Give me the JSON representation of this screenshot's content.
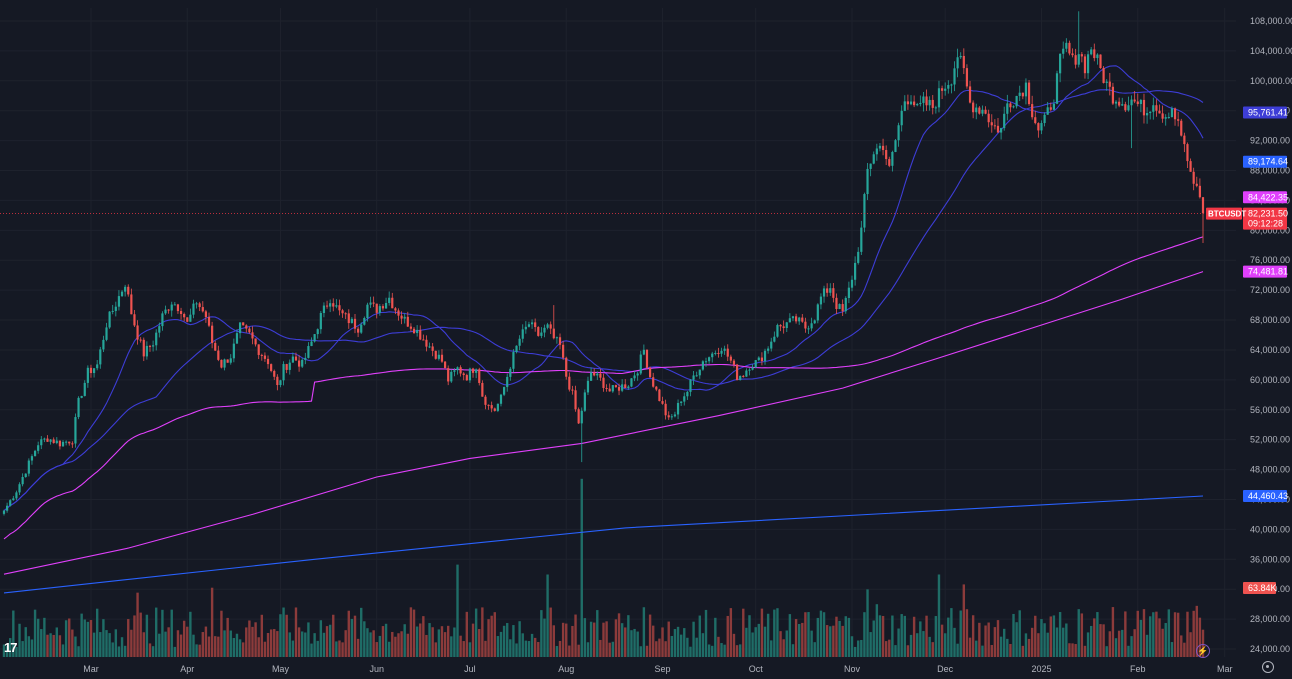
{
  "symbol": "BTCUSDT",
  "branding": {
    "logo_text": "17"
  },
  "colors": {
    "background": "#151924",
    "up": "#26a69a",
    "down": "#ef5350",
    "vol_up": "#1f6d67",
    "vol_down": "#8c3b3b",
    "ma_short": "#3d3dd6",
    "ma_mid": "#2962ff",
    "ma_pink": "#e040fb",
    "ma_pink2": "#d81b8a",
    "grid": "#1e222d",
    "axis_text": "#b2b5be",
    "price_line": "#f23645"
  },
  "chart_data": {
    "type": "candlestick",
    "ylim": [
      23000,
      110000
    ],
    "y_ticks": [
      "108,000.00",
      "104,000.00",
      "100,000.00",
      "96,000.00",
      "92,000.00",
      "88,000.00",
      "84,000.00",
      "80,000.00",
      "76,000.00",
      "72,000.00",
      "68,000.00",
      "64,000.00",
      "60,000.00",
      "56,000.00",
      "52,000.00",
      "48,000.00",
      "44,000.00",
      "40,000.00",
      "36,000.00",
      "32,000.00",
      "28,000.00",
      "24,000.00"
    ],
    "x_labels": [
      {
        "label": "Mar",
        "day": 28
      },
      {
        "label": "Apr",
        "day": 59
      },
      {
        "label": "May",
        "day": 89
      },
      {
        "label": "Jun",
        "day": 120
      },
      {
        "label": "Jul",
        "day": 150
      },
      {
        "label": "Aug",
        "day": 181
      },
      {
        "label": "Sep",
        "day": 212
      },
      {
        "label": "Oct",
        "day": 242
      },
      {
        "label": "Nov",
        "day": 273
      },
      {
        "label": "Dec",
        "day": 303
      },
      {
        "label": "2025",
        "day": 334
      },
      {
        "label": "Feb",
        "day": 365
      },
      {
        "label": "Mar",
        "day": 393
      }
    ],
    "close_anchors": [
      [
        0,
        42500
      ],
      [
        4,
        45200
      ],
      [
        8,
        48800
      ],
      [
        11,
        51500
      ],
      [
        14,
        52200
      ],
      [
        18,
        51500
      ],
      [
        22,
        52000
      ],
      [
        24,
        57000
      ],
      [
        27,
        61000
      ],
      [
        30,
        62000
      ],
      [
        33,
        67500
      ],
      [
        36,
        70200
      ],
      [
        39,
        73000
      ],
      [
        41,
        69000
      ],
      [
        43,
        66000
      ],
      [
        45,
        63500
      ],
      [
        48,
        65000
      ],
      [
        51,
        68500
      ],
      [
        54,
        70500
      ],
      [
        57,
        69500
      ],
      [
        59,
        67500
      ],
      [
        62,
        70500
      ],
      [
        65,
        68500
      ],
      [
        67,
        65000
      ],
      [
        70,
        62000
      ],
      [
        73,
        63200
      ],
      [
        76,
        67000
      ],
      [
        79,
        66000
      ],
      [
        82,
        64000
      ],
      [
        85,
        62500
      ],
      [
        88,
        59000
      ],
      [
        90,
        61500
      ],
      [
        93,
        63000
      ],
      [
        96,
        62000
      ],
      [
        99,
        65000
      ],
      [
        102,
        68500
      ],
      [
        105,
        71000
      ],
      [
        108,
        69000
      ],
      [
        111,
        68000
      ],
      [
        114,
        67000
      ],
      [
        117,
        70000
      ],
      [
        120,
        69500
      ],
      [
        124,
        71000
      ],
      [
        126,
        69500
      ],
      [
        129,
        68000
      ],
      [
        132,
        67000
      ],
      [
        135,
        65500
      ],
      [
        138,
        64000
      ],
      [
        141,
        62500
      ],
      [
        143,
        60000
      ],
      [
        146,
        61500
      ],
      [
        149,
        60500
      ],
      [
        152,
        62000
      ],
      [
        154,
        58000
      ],
      [
        156,
        56500
      ],
      [
        158,
        56000
      ],
      [
        160,
        57500
      ],
      [
        163,
        62000
      ],
      [
        166,
        65500
      ],
      [
        169,
        67500
      ],
      [
        172,
        66000
      ],
      [
        175,
        67000
      ],
      [
        177,
        65500
      ],
      [
        179,
        64500
      ],
      [
        181,
        60500
      ],
      [
        183,
        58000
      ],
      [
        185,
        54000
      ],
      [
        187,
        58000
      ],
      [
        189,
        61000
      ],
      [
        192,
        60000
      ],
      [
        195,
        58500
      ],
      [
        198,
        59000
      ],
      [
        201,
        59500
      ],
      [
        204,
        61500
      ],
      [
        206,
        64000
      ],
      [
        208,
        60500
      ],
      [
        210,
        58500
      ],
      [
        212,
        56500
      ],
      [
        214,
        54500
      ],
      [
        216,
        55500
      ],
      [
        218,
        57500
      ],
      [
        220,
        58500
      ],
      [
        222,
        60500
      ],
      [
        225,
        62500
      ],
      [
        228,
        63500
      ],
      [
        231,
        64500
      ],
      [
        234,
        62500
      ],
      [
        236,
        60500
      ],
      [
        238,
        60800
      ],
      [
        240,
        62000
      ],
      [
        243,
        62500
      ],
      [
        246,
        64500
      ],
      [
        249,
        67000
      ],
      [
        252,
        67500
      ],
      [
        255,
        68000
      ],
      [
        258,
        67000
      ],
      [
        261,
        68500
      ],
      [
        263,
        71000
      ],
      [
        266,
        72500
      ],
      [
        268,
        70000
      ],
      [
        270,
        69000
      ],
      [
        272,
        72000
      ],
      [
        274,
        75500
      ],
      [
        276,
        80000
      ],
      [
        278,
        88000
      ],
      [
        280,
        90500
      ],
      [
        283,
        91500
      ],
      [
        285,
        88000
      ],
      [
        288,
        94000
      ],
      [
        290,
        97500
      ],
      [
        292,
        98000
      ],
      [
        294,
        96000
      ],
      [
        296,
        97000
      ],
      [
        299,
        96500
      ],
      [
        302,
        99000
      ],
      [
        305,
        100500
      ],
      [
        307,
        103500
      ],
      [
        309,
        101000
      ],
      [
        311,
        97000
      ],
      [
        313,
        96500
      ],
      [
        316,
        96000
      ],
      [
        318,
        94000
      ],
      [
        321,
        93500
      ],
      [
        323,
        97000
      ],
      [
        326,
        98000
      ],
      [
        329,
        99500
      ],
      [
        331,
        96000
      ],
      [
        333,
        93500
      ],
      [
        335,
        94500
      ],
      [
        338,
        98000
      ],
      [
        340,
        102500
      ],
      [
        342,
        104500
      ],
      [
        344,
        102500
      ],
      [
        346,
        104000
      ],
      [
        348,
        102000
      ],
      [
        350,
        104500
      ],
      [
        353,
        101500
      ],
      [
        355,
        99500
      ],
      [
        357,
        98000
      ],
      [
        359,
        97500
      ],
      [
        361,
        97000
      ],
      [
        363,
        97500
      ],
      [
        366,
        96500
      ],
      [
        368,
        96000
      ],
      [
        370,
        97500
      ],
      [
        372,
        96000
      ],
      [
        374,
        95500
      ],
      [
        376,
        96500
      ],
      [
        378,
        94000
      ],
      [
        380,
        91500
      ],
      [
        381,
        88500
      ],
      [
        383,
        86500
      ],
      [
        385,
        84500
      ],
      [
        386,
        82300
      ]
    ],
    "volume_spikes": [
      [
        38,
        12
      ],
      [
        40,
        23
      ],
      [
        43,
        39
      ],
      [
        45,
        15
      ],
      [
        53,
        18
      ],
      [
        67,
        42
      ],
      [
        146,
        56
      ],
      [
        175,
        50
      ],
      [
        186,
        108
      ],
      [
        253,
        26
      ],
      [
        278,
        41
      ],
      [
        281,
        32
      ],
      [
        301,
        50
      ],
      [
        309,
        44
      ],
      [
        334,
        23
      ],
      [
        346,
        29
      ],
      [
        365,
        28
      ],
      [
        383,
        28
      ],
      [
        384,
        31
      ]
    ],
    "moving_averages": [
      {
        "name": "ma20",
        "color": "#3d3dd6",
        "window": 20,
        "label": "95,761.41",
        "label_color": "#3d3dd6"
      },
      {
        "name": "ma50",
        "color": "#3d3dd6",
        "window": 50,
        "label": "89,174.64",
        "label_color": "#2962ff"
      },
      {
        "name": "ma200",
        "color": "#e040fb",
        "window": 200,
        "label": "84,422.35",
        "label_color": "#e040fb"
      },
      {
        "name": "ma200w",
        "color": "#e040fb",
        "points": [
          [
            0,
            34000
          ],
          [
            40,
            37500
          ],
          [
            80,
            42000
          ],
          [
            120,
            47000
          ],
          [
            150,
            49500
          ],
          [
            186,
            51500
          ],
          [
            230,
            55200
          ],
          [
            270,
            58900
          ],
          [
            300,
            62800
          ],
          [
            330,
            66800
          ],
          [
            360,
            70800
          ],
          [
            386,
            74480
          ]
        ],
        "label": "74,481.81",
        "label_color": "#e040fb"
      },
      {
        "name": "ma_long",
        "color": "#2962ff",
        "points": [
          [
            0,
            31500
          ],
          [
            100,
            36000
          ],
          [
            200,
            40200
          ],
          [
            300,
            42500
          ],
          [
            386,
            44460
          ]
        ],
        "label": "44,460.43",
        "label_color": "#2962ff"
      }
    ],
    "last_price": {
      "value": 82231.5,
      "label": "82,231.50",
      "countdown": "09:12:28"
    },
    "volume_label": "63.84K"
  }
}
